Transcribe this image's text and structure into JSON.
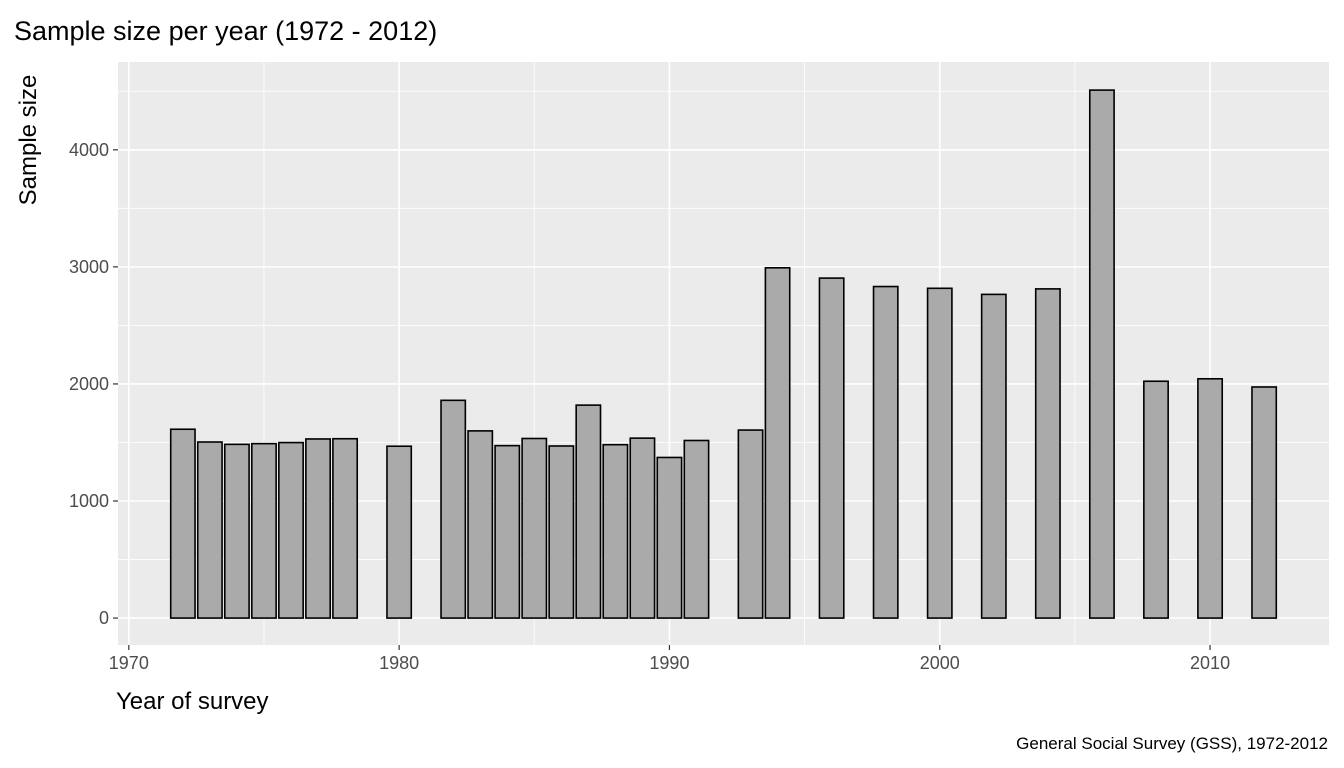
{
  "chart_data": {
    "type": "bar",
    "title": "Sample size per year (1972 - 2012)",
    "xlabel": "Year of survey",
    "ylabel": "Sample size",
    "caption": "General Social Survey (GSS), 1972-2012",
    "xlim": [
      1969.6,
      2014.4
    ],
    "ylim": [
      -230,
      4750
    ],
    "x_ticks": [
      1970,
      1980,
      1990,
      2000,
      2010
    ],
    "y_ticks": [
      0,
      1000,
      2000,
      3000,
      4000
    ],
    "grid": true,
    "bar_fill": "#aaaaaa",
    "bar_outline": "#000000",
    "panel_background": "#ebebeb",
    "x": [
      1972,
      1973,
      1974,
      1975,
      1976,
      1977,
      1978,
      1980,
      1982,
      1983,
      1984,
      1985,
      1986,
      1987,
      1988,
      1989,
      1990,
      1991,
      1993,
      1994,
      1996,
      1998,
      2000,
      2002,
      2004,
      2006,
      2008,
      2010,
      2012
    ],
    "values": [
      1613,
      1504,
      1484,
      1490,
      1499,
      1530,
      1532,
      1468,
      1860,
      1599,
      1473,
      1534,
      1470,
      1819,
      1481,
      1537,
      1372,
      1517,
      1606,
      2992,
      2904,
      2832,
      2817,
      2765,
      2812,
      4510,
      2023,
      2044,
      1974
    ]
  }
}
